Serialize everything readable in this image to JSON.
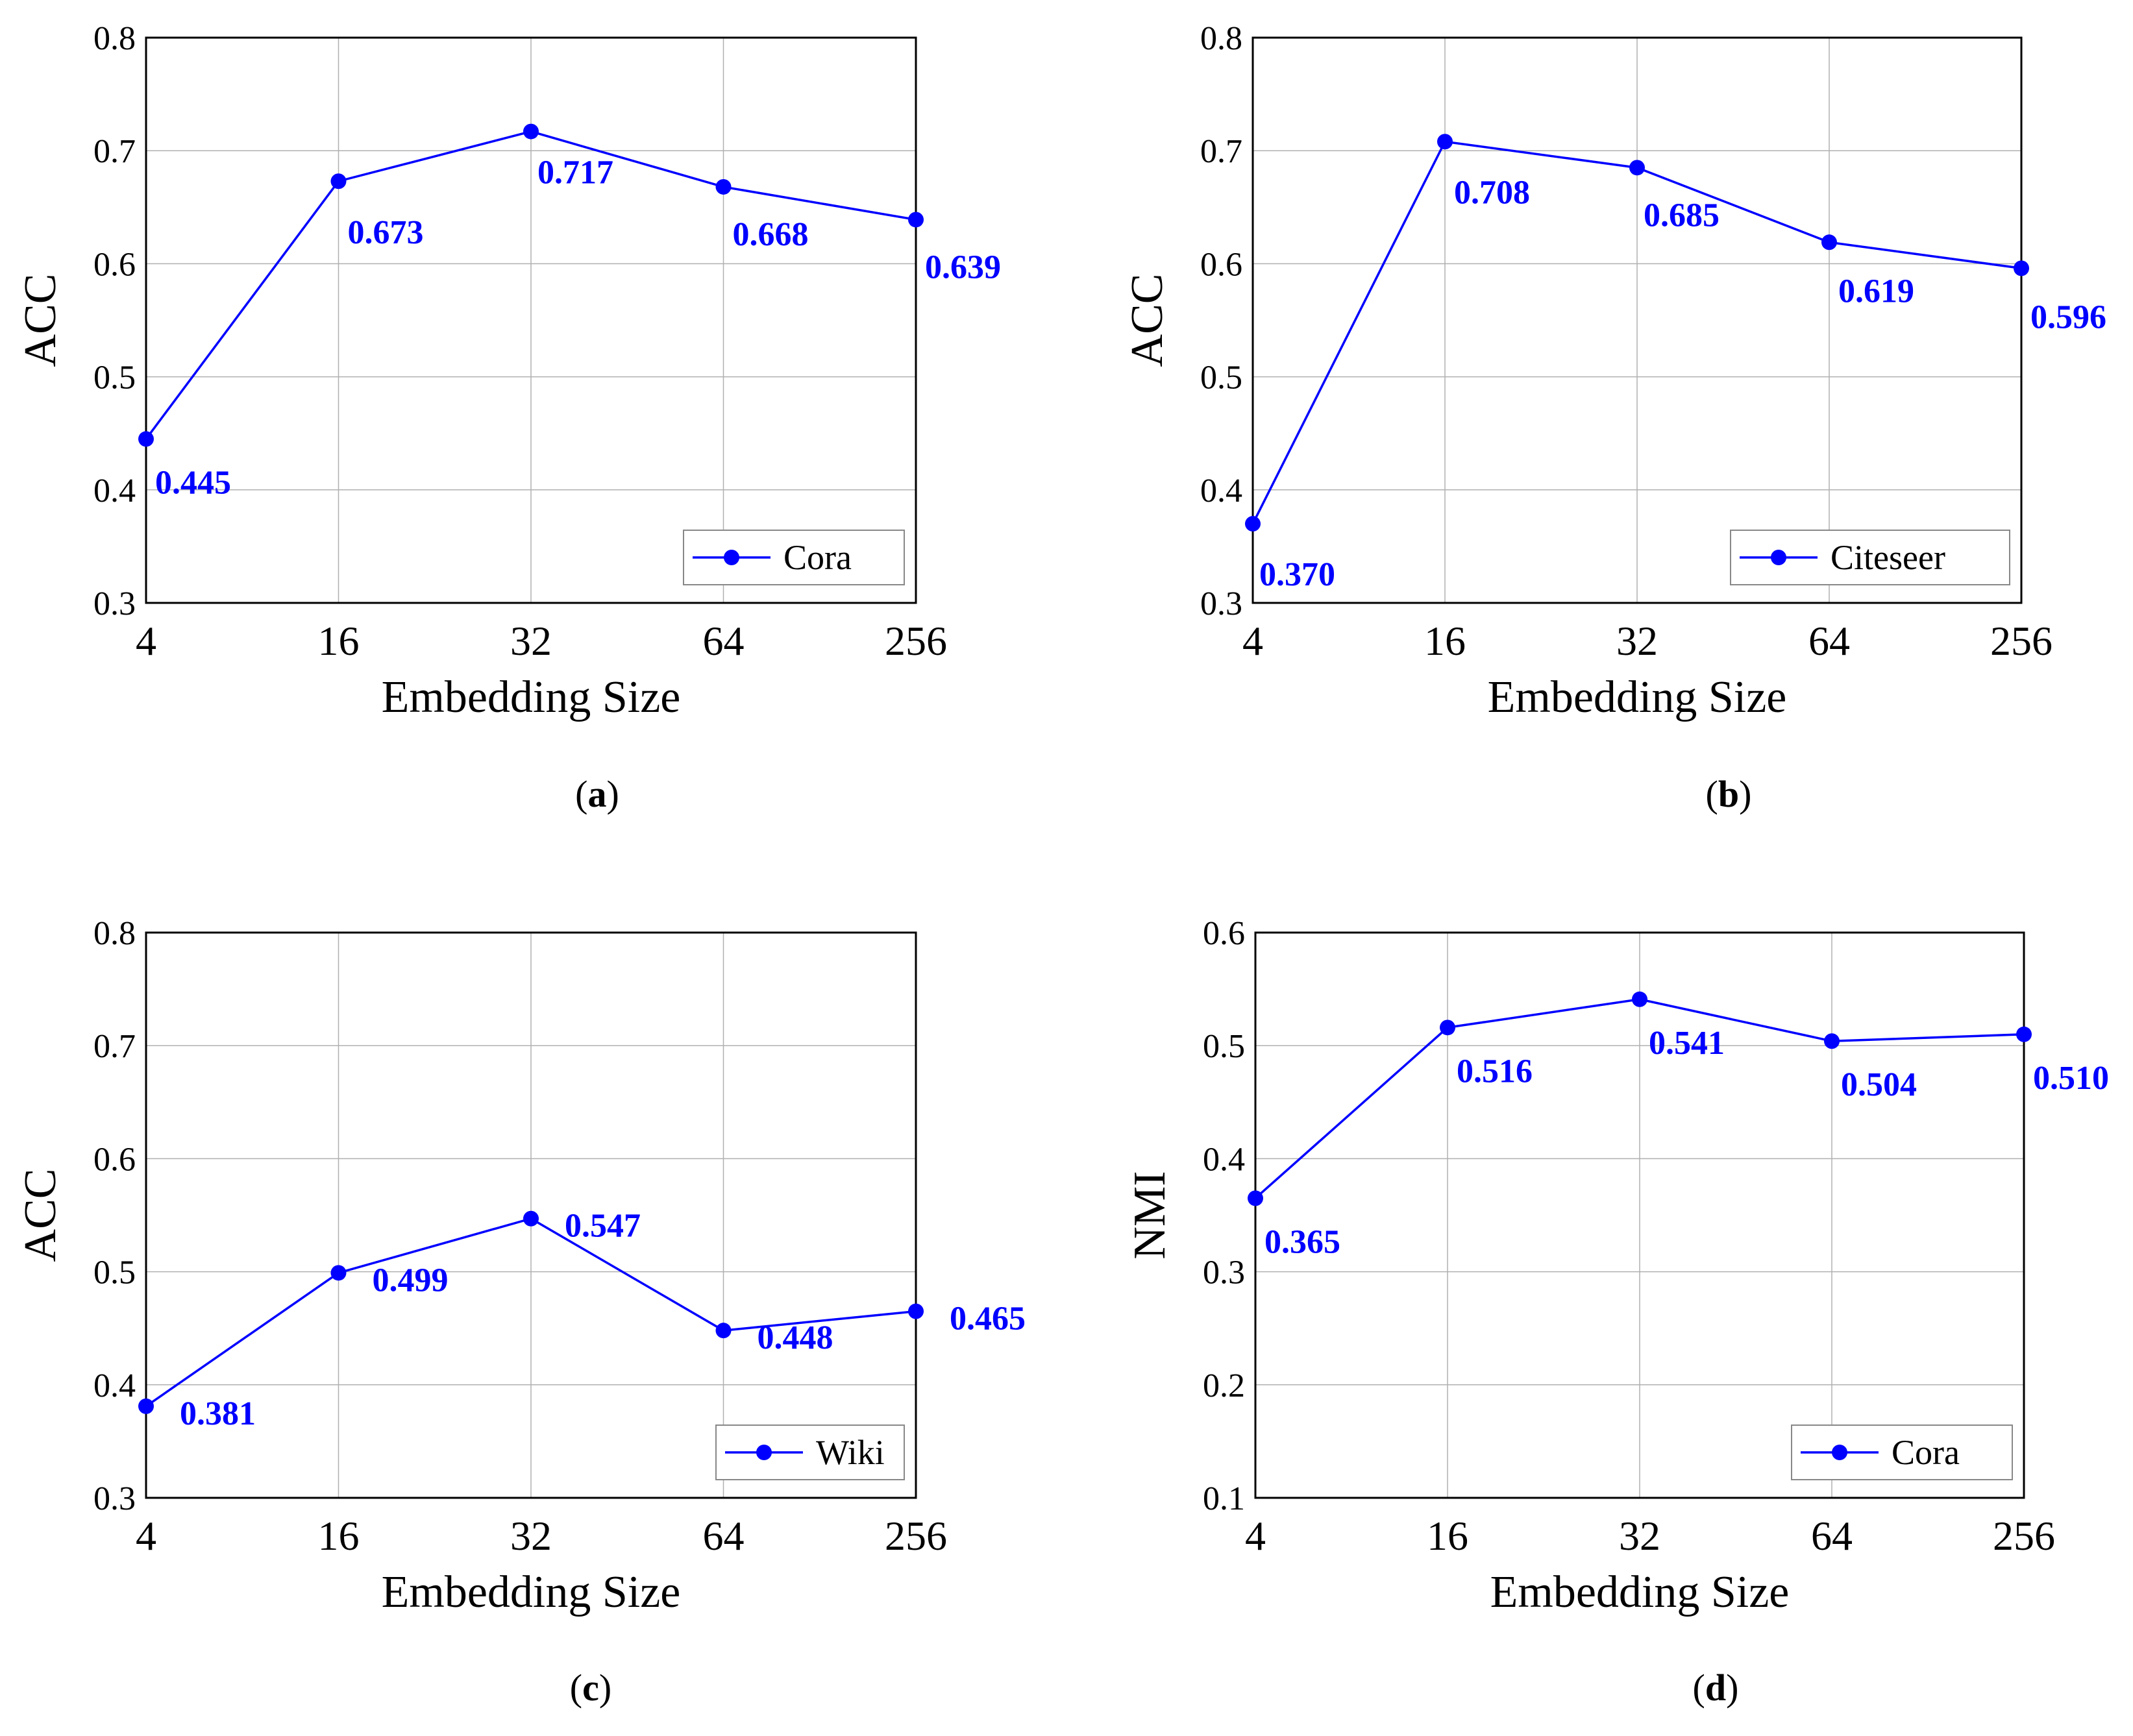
{
  "figure": {
    "captions": [
      "a",
      "b",
      "c",
      "d"
    ]
  },
  "colors": {
    "series": "#0000ff",
    "axis": "#000000",
    "grid": "#b0b0b0",
    "label": "#0000ff"
  },
  "chart_data": [
    {
      "type": "line",
      "xlabel": "Embedding Size",
      "ylabel": "ACC",
      "categories": [
        "4",
        "16",
        "32",
        "64",
        "256"
      ],
      "ylim": [
        0.3,
        0.8
      ],
      "yticks": [
        "0.3",
        "0.4",
        "0.5",
        "0.6",
        "0.7",
        "0.8"
      ],
      "grid": true,
      "legend": "bottom-right",
      "series": [
        {
          "name": "Cora",
          "values": [
            0.445,
            0.673,
            0.717,
            0.668,
            0.639
          ],
          "labels": [
            "0.445",
            "0.673",
            "0.717",
            "0.668",
            "0.639"
          ]
        }
      ]
    },
    {
      "type": "line",
      "xlabel": "Embedding Size",
      "ylabel": "ACC",
      "categories": [
        "4",
        "16",
        "32",
        "64",
        "256"
      ],
      "ylim": [
        0.3,
        0.8
      ],
      "yticks": [
        "0.3",
        "0.4",
        "0.5",
        "0.6",
        "0.7",
        "0.8"
      ],
      "grid": true,
      "legend": "bottom-right",
      "series": [
        {
          "name": "Citeseer",
          "values": [
            0.37,
            0.708,
            0.685,
            0.619,
            0.596
          ],
          "labels": [
            "0.370",
            "0.708",
            "0.685",
            "0.619",
            "0.596"
          ]
        }
      ]
    },
    {
      "type": "line",
      "xlabel": "Embedding Size",
      "ylabel": "ACC",
      "categories": [
        "4",
        "16",
        "32",
        "64",
        "256"
      ],
      "ylim": [
        0.3,
        0.8
      ],
      "yticks": [
        "0.3",
        "0.4",
        "0.5",
        "0.6",
        "0.7",
        "0.8"
      ],
      "grid": true,
      "legend": "bottom-right",
      "series": [
        {
          "name": "Wiki",
          "values": [
            0.381,
            0.499,
            0.547,
            0.448,
            0.465
          ],
          "labels": [
            "0.381",
            "0.499",
            "0.547",
            "0.448",
            "0.465"
          ]
        }
      ]
    },
    {
      "type": "line",
      "xlabel": "Embedding Size",
      "ylabel": "NMI",
      "categories": [
        "4",
        "16",
        "32",
        "64",
        "256"
      ],
      "ylim": [
        0.1,
        0.6
      ],
      "yticks": [
        "0.1",
        "0.2",
        "0.3",
        "0.4",
        "0.5",
        "0.6"
      ],
      "grid": true,
      "legend": "bottom-right",
      "series": [
        {
          "name": "Cora",
          "values": [
            0.365,
            0.516,
            0.541,
            0.504,
            0.51
          ],
          "labels": [
            "0.365",
            "0.516",
            "0.541",
            "0.504",
            "0.510"
          ]
        }
      ]
    }
  ]
}
